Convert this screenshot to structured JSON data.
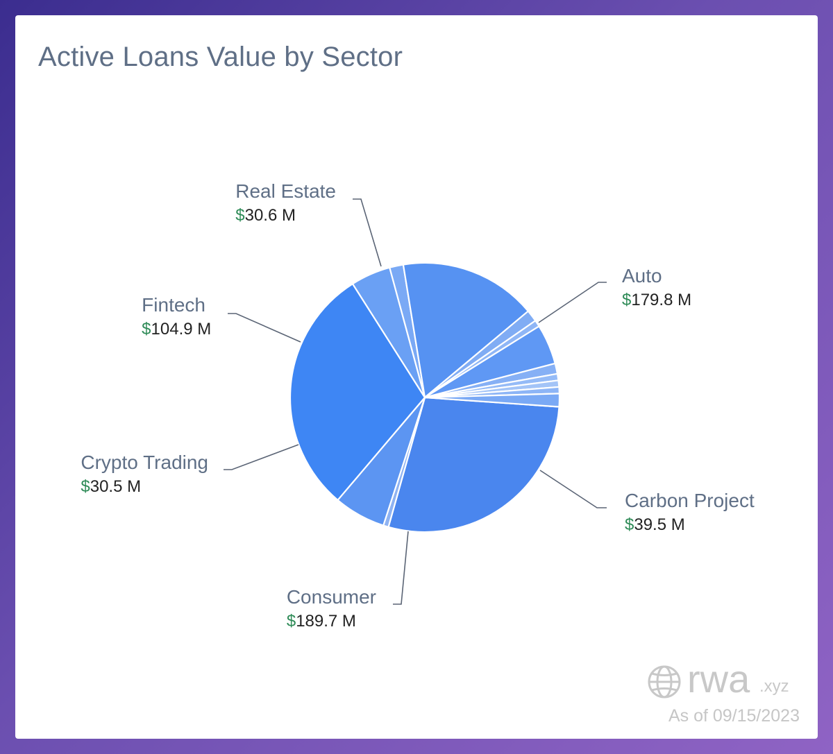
{
  "title": "Active Loans Value by Sector",
  "watermark": {
    "brand": "rwa",
    "tld": ".xyz",
    "icon": "globe-icon"
  },
  "as_of": "As of 09/15/2023",
  "colors": {
    "label": "#5f6f86",
    "value": "#222222",
    "currency": "#2e8b57",
    "leader": "#5a6475"
  },
  "chart_data": {
    "type": "pie",
    "currency_symbol": "$",
    "unit": " M",
    "slices": [
      {
        "name": "Auto",
        "value": 179.8,
        "label": true,
        "color": "#4a86ee"
      },
      {
        "name": "",
        "value": 4.0,
        "label": false,
        "color": "#8fb3f2"
      },
      {
        "name": "Carbon Project",
        "value": 39.5,
        "label": true,
        "color": "#5c95f2"
      },
      {
        "name": "Consumer",
        "value": 189.7,
        "label": true,
        "color": "#3e86f4"
      },
      {
        "name": "Crypto Trading",
        "value": 30.5,
        "label": true,
        "color": "#6aa0f4"
      },
      {
        "name": "",
        "value": 10.5,
        "label": false,
        "color": "#7aa9f5"
      },
      {
        "name": "Fintech",
        "value": 104.9,
        "label": true,
        "color": "#5692f2"
      },
      {
        "name": "",
        "value": 9.0,
        "label": false,
        "color": "#80acf4"
      },
      {
        "name": "",
        "value": 5.0,
        "label": false,
        "color": "#8fb6f6"
      },
      {
        "name": "Real Estate",
        "value": 30.6,
        "label": true,
        "color": "#5f98f4"
      },
      {
        "name": "",
        "value": 8.0,
        "label": false,
        "color": "#86b0f5"
      },
      {
        "name": "",
        "value": 5.0,
        "label": false,
        "color": "#95bbf7"
      },
      {
        "name": "",
        "value": 5.0,
        "label": false,
        "color": "#a3c4f7"
      },
      {
        "name": "",
        "value": 5.0,
        "label": false,
        "color": "#8db5f6"
      },
      {
        "name": "",
        "value": 10.0,
        "label": false,
        "color": "#7aa9f5"
      }
    ]
  }
}
